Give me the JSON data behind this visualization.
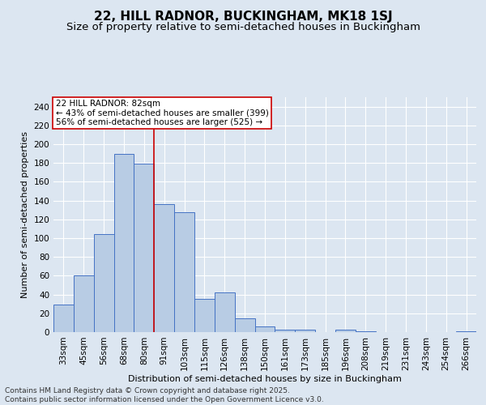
{
  "title": "22, HILL RADNOR, BUCKINGHAM, MK18 1SJ",
  "subtitle": "Size of property relative to semi-detached houses in Buckingham",
  "xlabel": "Distribution of semi-detached houses by size in Buckingham",
  "ylabel": "Number of semi-detached properties",
  "categories": [
    "33sqm",
    "45sqm",
    "56sqm",
    "68sqm",
    "80sqm",
    "91sqm",
    "103sqm",
    "115sqm",
    "126sqm",
    "138sqm",
    "150sqm",
    "161sqm",
    "173sqm",
    "185sqm",
    "196sqm",
    "208sqm",
    "219sqm",
    "231sqm",
    "243sqm",
    "254sqm",
    "266sqm"
  ],
  "values": [
    29,
    60,
    104,
    190,
    179,
    136,
    128,
    35,
    42,
    15,
    6,
    3,
    3,
    0,
    3,
    1,
    0,
    0,
    0,
    0,
    1
  ],
  "bar_color": "#b8cce4",
  "bar_edge_color": "#4472c4",
  "bg_color": "#dce6f1",
  "grid_color": "#ffffff",
  "vline_x": 4.5,
  "vline_color": "#cc0000",
  "annotation_title": "22 HILL RADNOR: 82sqm",
  "annotation_line1": "← 43% of semi-detached houses are smaller (399)",
  "annotation_line2": "56% of semi-detached houses are larger (525) →",
  "annotation_box_color": "#cc0000",
  "footer1": "Contains HM Land Registry data © Crown copyright and database right 2025.",
  "footer2": "Contains public sector information licensed under the Open Government Licence v3.0.",
  "ylim": [
    0,
    250
  ],
  "yticks": [
    0,
    20,
    40,
    60,
    80,
    100,
    120,
    140,
    160,
    180,
    200,
    220,
    240
  ],
  "title_fontsize": 11,
  "subtitle_fontsize": 9.5,
  "axis_label_fontsize": 8,
  "tick_fontsize": 7.5,
  "annotation_fontsize": 7.5,
  "footer_fontsize": 6.5
}
